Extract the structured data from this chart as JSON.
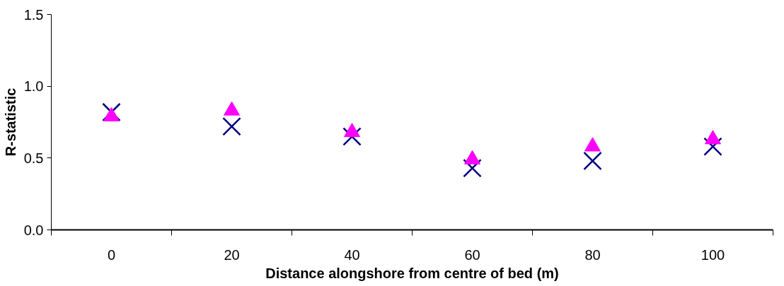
{
  "chart_data": {
    "type": "scatter",
    "xlabel": "Distance alongshore from centre of bed (m)",
    "ylabel": "R-statistic",
    "categories": [
      "0",
      "20",
      "40",
      "60",
      "80",
      "100"
    ],
    "series": [
      {
        "color": "#000080",
        "marker": "cross",
        "values": [
          0.82,
          0.72,
          0.65,
          0.43,
          0.48,
          0.58
        ]
      },
      {
        "color": "#ff00ff",
        "marker": "triangle",
        "values": [
          0.79,
          0.83,
          0.68,
          0.49,
          0.58,
          0.63
        ]
      }
    ],
    "ylim": [
      0,
      1.5
    ],
    "yticks": [
      {
        "value": 0,
        "label": "0.0"
      },
      {
        "value": 0.5,
        "label": "0.5"
      },
      {
        "value": 1,
        "label": "1.0"
      },
      {
        "value": 1.5,
        "label": "1.5"
      }
    ]
  }
}
